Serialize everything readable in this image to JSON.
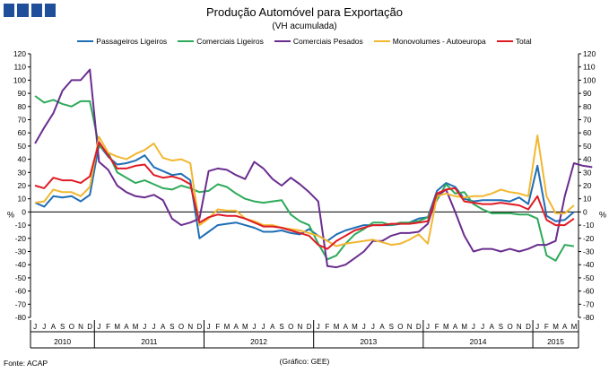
{
  "chart_data": {
    "type": "line",
    "title": "Produção Automóvel para Exportação",
    "subtitle": "(VH acumulada)",
    "ylabel_left": "%",
    "ylabel_right": "%",
    "ylim": [
      -80,
      120
    ],
    "ytick_step": 10,
    "month_labels": [
      "J",
      "J",
      "A",
      "S",
      "O",
      "N",
      "D",
      "J",
      "F",
      "M",
      "A",
      "M",
      "J",
      "J",
      "A",
      "S",
      "O",
      "N",
      "D",
      "J",
      "F",
      "M",
      "A",
      "M",
      "J",
      "J",
      "A",
      "S",
      "O",
      "N",
      "D",
      "J",
      "F",
      "M",
      "A",
      "M",
      "J",
      "J",
      "A",
      "S",
      "O",
      "N",
      "D",
      "J",
      "F",
      "M",
      "A",
      "M",
      "J",
      "J",
      "A",
      "S",
      "O",
      "N",
      "D",
      "J",
      "F",
      "M",
      "A",
      "M"
    ],
    "year_groups": [
      {
        "label": "2010",
        "count": 7
      },
      {
        "label": "2011",
        "count": 12
      },
      {
        "label": "2012",
        "count": 12
      },
      {
        "label": "2013",
        "count": 12
      },
      {
        "label": "2014",
        "count": 12
      },
      {
        "label": "2015",
        "count": 5
      }
    ],
    "series": [
      {
        "name": "Passageiros Ligeiros",
        "color": "#1f6eb5",
        "values": [
          7,
          4,
          12,
          11,
          12,
          8,
          13,
          51,
          42,
          36,
          37,
          39,
          43,
          34,
          31,
          28,
          29,
          24,
          -20,
          -15,
          -10,
          -9,
          -8,
          -10,
          -12,
          -15,
          -15,
          -14,
          -16,
          -17,
          -13,
          -18,
          -22,
          -17,
          -14,
          -12,
          -10,
          -10,
          -10,
          -10,
          -9,
          -8,
          -5,
          -4,
          16,
          22,
          19,
          10,
          8,
          9,
          9,
          9,
          8,
          11,
          6,
          35,
          -3,
          -7,
          -6,
          0
        ]
      },
      {
        "name": "Comerciais Ligeiros",
        "color": "#2eaa5a",
        "values": [
          88,
          83,
          85,
          82,
          80,
          84,
          84,
          50,
          45,
          30,
          26,
          22,
          24,
          21,
          18,
          17,
          20,
          18,
          15,
          16,
          21,
          19,
          14,
          10,
          8,
          7,
          8,
          9,
          -2,
          -7,
          -10,
          -24,
          -36,
          -33,
          -24,
          -17,
          -13,
          -8,
          -8,
          -10,
          -8,
          -8,
          -7,
          -4,
          9,
          21,
          14,
          15,
          6,
          2,
          -1,
          -1,
          -1,
          -2,
          -2,
          -5,
          -33,
          -37,
          -25,
          -26
        ]
      },
      {
        "name": "Comerciais Pesados",
        "color": "#6a2d8f",
        "values": [
          52,
          64,
          75,
          92,
          100,
          100,
          108,
          38,
          32,
          20,
          15,
          12,
          11,
          13,
          9,
          -5,
          -10,
          -8,
          -5,
          31,
          33,
          32,
          28,
          25,
          38,
          33,
          25,
          20,
          26,
          21,
          15,
          8,
          -41,
          -42,
          -40,
          -35,
          -30,
          -22,
          -22,
          -18,
          -16,
          -16,
          -15,
          -9,
          12,
          17,
          0,
          -18,
          -30,
          -28,
          -28,
          -30,
          -28,
          -30,
          -28,
          -25,
          -25,
          -22,
          12,
          37,
          35,
          34
        ]
      },
      {
        "name": "Monovolumes - Autoeuropa",
        "color": "#f2b730",
        "values": [
          7,
          8,
          17,
          15,
          15,
          12,
          19,
          57,
          45,
          42,
          40,
          44,
          47,
          52,
          41,
          39,
          40,
          37,
          -10,
          -5,
          2,
          1,
          1,
          -5,
          -7,
          -10,
          -10,
          -12,
          -13,
          -14,
          -16,
          -18,
          -22,
          -26,
          -24,
          -23,
          -22,
          -21,
          -23,
          -25,
          -24,
          -21,
          -17,
          -24,
          12,
          14,
          12,
          11,
          12,
          12,
          14,
          17,
          15,
          14,
          12,
          58,
          12,
          -1,
          -1,
          5
        ]
      },
      {
        "name": "Total",
        "color": "#e01b24",
        "values": [
          20,
          18,
          26,
          24,
          24,
          22,
          27,
          53,
          43,
          33,
          33,
          35,
          36,
          28,
          26,
          27,
          25,
          21,
          -8,
          -4,
          -2,
          -3,
          -3,
          -5,
          -8,
          -11,
          -11,
          -12,
          -14,
          -16,
          -18,
          -25,
          -28,
          -22,
          -18,
          -14,
          -12,
          -10,
          -10,
          -9,
          -9,
          -9,
          -8,
          -7,
          14,
          17,
          18,
          8,
          7,
          6,
          6,
          7,
          6,
          5,
          2,
          12,
          -6,
          -10,
          -10,
          -5
        ]
      }
    ]
  },
  "source": "Fonte: ACAP",
  "credit": "(Gráfico: GEE)"
}
